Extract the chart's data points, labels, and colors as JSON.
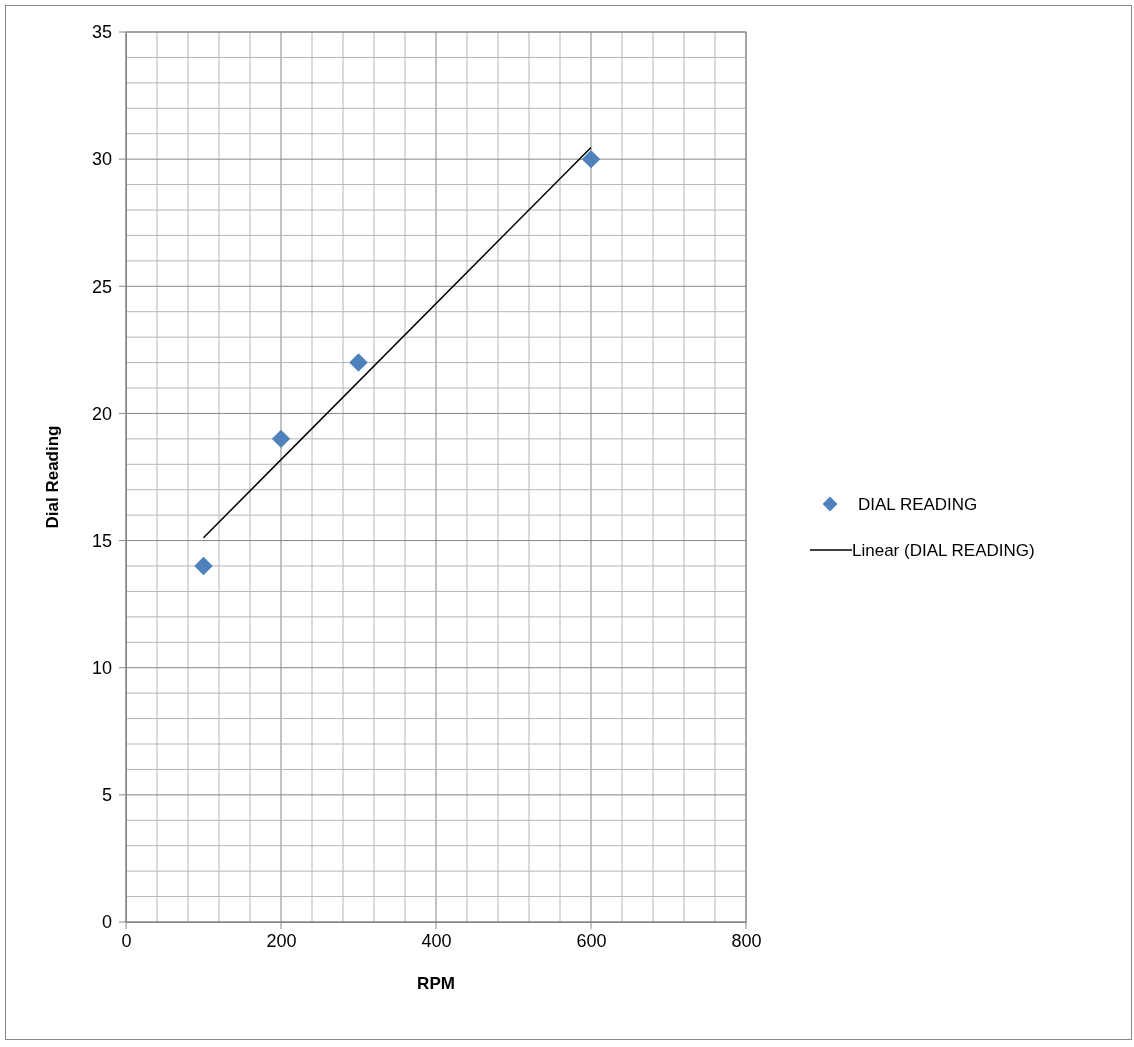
{
  "chart_data": {
    "type": "scatter",
    "xlabel": "RPM",
    "ylabel": "Dial Reading",
    "series": [
      {
        "name": "DIAL READING",
        "color": "#4f81bd",
        "marker": "diamond",
        "x": [
          100,
          200,
          300,
          600
        ],
        "values": [
          14,
          19,
          22,
          30
        ]
      },
      {
        "name": "Linear (DIAL READING)",
        "type": "line",
        "color": "#000000",
        "marker": "none",
        "line_style": "solid",
        "x": [
          100,
          600
        ],
        "values": [
          15.11,
          30.46
        ]
      }
    ],
    "xlim": [
      0,
      800
    ],
    "xticks": [
      0,
      {
        "value": 40,
        "label": null
      },
      {
        "value": 80,
        "label": null
      },
      {
        "value": 120,
        "label": null
      },
      {
        "value": 160,
        "label": null
      },
      200,
      {
        "value": 240,
        "label": null
      },
      {
        "value": 280,
        "label": null
      },
      {
        "value": 320,
        "label": null
      },
      {
        "value": 360,
        "label": null
      },
      400,
      {
        "value": 440,
        "label": null
      },
      {
        "value": 480,
        "label": null
      },
      {
        "value": 520,
        "label": null
      },
      {
        "value": 560,
        "label": null
      },
      600,
      {
        "value": 640,
        "label": null
      },
      {
        "value": 680,
        "label": null
      },
      {
        "value": 720,
        "label": null
      },
      {
        "value": 760,
        "label": null
      },
      800
    ],
    "ylim": [
      0,
      35
    ],
    "yticks": [
      0,
      {
        "value": 1,
        "label": null
      },
      {
        "value": 2,
        "label": null
      },
      {
        "value": 3,
        "label": null
      },
      {
        "value": 4,
        "label": null
      },
      5,
      {
        "value": 6,
        "label": null
      },
      {
        "value": 7,
        "label": null
      },
      {
        "value": 8,
        "label": null
      },
      {
        "value": 9,
        "label": null
      },
      10,
      {
        "value": 11,
        "label": null
      },
      {
        "value": 12,
        "label": null
      },
      {
        "value": 13,
        "label": null
      },
      {
        "value": 14,
        "label": null
      },
      15,
      {
        "value": 16,
        "label": null
      },
      {
        "value": 17,
        "label": null
      },
      {
        "value": 18,
        "label": null
      },
      {
        "value": 19,
        "label": null
      },
      20,
      {
        "value": 21,
        "label": null
      },
      {
        "value": 22,
        "label": null
      },
      {
        "value": 23,
        "label": null
      },
      {
        "value": 24,
        "label": null
      },
      25,
      {
        "value": 26,
        "label": null
      },
      {
        "value": 27,
        "label": null
      },
      {
        "value": 28,
        "label": null
      },
      {
        "value": 29,
        "label": null
      },
      30,
      {
        "value": 31,
        "label": null
      },
      {
        "value": 32,
        "label": null
      },
      {
        "value": 33,
        "label": null
      },
      {
        "value": 34,
        "label": null
      },
      35
    ],
    "grid": true,
    "legend": "right"
  }
}
